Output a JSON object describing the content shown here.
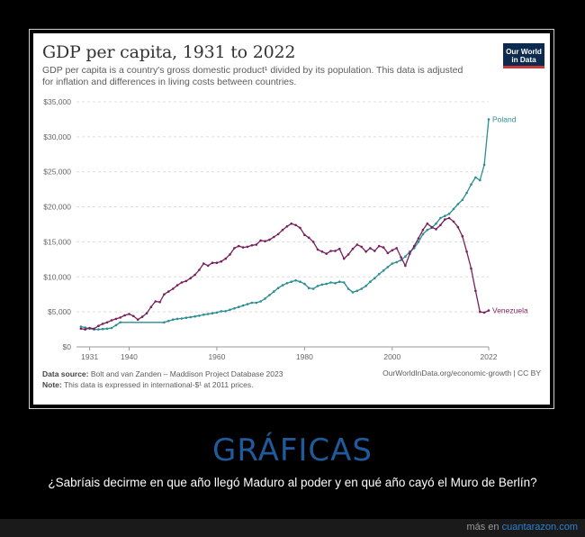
{
  "card": {
    "title": "GDP per capita, 1931 to 2022",
    "subtitle": "GDP per capita is a country's gross domestic product¹ divided by its population. This data is adjusted for inflation and differences in living costs between countries.",
    "logo_line1": "Our World",
    "logo_line2": "in Data",
    "source_label": "Data source:",
    "source_text": "Bolt and van Zanden – Maddison Project Database 2023",
    "note_label": "Note:",
    "note_text": "This data is expressed in international-$¹ at 2011 prices.",
    "url_text": "OurWorldInData.org/economic-growth | CC BY"
  },
  "post": {
    "headline": "GRÁFICAS",
    "caption": "¿Sabríais decirme en que año llegó Maduro al poder y en qué año cayó el Muro de Berlín?",
    "credit_prefix": "más en",
    "credit_site": "cuantarazon.com"
  },
  "chart_data": {
    "type": "line",
    "title": "GDP per capita, 1931 to 2022",
    "xlabel": "",
    "ylabel": "",
    "xlim": [
      1928,
      2022
    ],
    "ylim": [
      0,
      35000
    ],
    "x_ticks": [
      1931,
      1940,
      1960,
      1980,
      2000,
      2022
    ],
    "y_ticks": [
      0,
      5000,
      10000,
      15000,
      20000,
      25000,
      30000,
      35000
    ],
    "y_tick_labels": [
      "$0",
      "$5,000",
      "$10,000",
      "$15,000",
      "$20,000",
      "$25,000",
      "$30,000",
      "$35,000"
    ],
    "grid": "horizontal-dashed",
    "colors": {
      "Poland": "#2a8e93",
      "Venezuela": "#7a1f5e"
    },
    "series": [
      {
        "name": "Poland",
        "label_position": "end",
        "points": [
          [
            1929,
            2900
          ],
          [
            1930,
            2750
          ],
          [
            1931,
            2600
          ],
          [
            1932,
            2500
          ],
          [
            1933,
            2500
          ],
          [
            1934,
            2550
          ],
          [
            1935,
            2600
          ],
          [
            1936,
            2700
          ],
          [
            1937,
            3100
          ],
          [
            1938,
            3500
          ],
          [
            1948,
            3500
          ],
          [
            1949,
            3700
          ],
          [
            1950,
            3900
          ],
          [
            1951,
            4000
          ],
          [
            1952,
            4050
          ],
          [
            1953,
            4150
          ],
          [
            1954,
            4250
          ],
          [
            1955,
            4350
          ],
          [
            1956,
            4450
          ],
          [
            1957,
            4600
          ],
          [
            1958,
            4700
          ],
          [
            1959,
            4800
          ],
          [
            1960,
            4900
          ],
          [
            1961,
            5100
          ],
          [
            1962,
            5100
          ],
          [
            1963,
            5300
          ],
          [
            1964,
            5500
          ],
          [
            1965,
            5700
          ],
          [
            1966,
            5900
          ],
          [
            1967,
            6100
          ],
          [
            1968,
            6300
          ],
          [
            1969,
            6300
          ],
          [
            1970,
            6500
          ],
          [
            1971,
            6900
          ],
          [
            1972,
            7400
          ],
          [
            1973,
            7900
          ],
          [
            1974,
            8400
          ],
          [
            1975,
            8800
          ],
          [
            1976,
            9100
          ],
          [
            1977,
            9300
          ],
          [
            1978,
            9500
          ],
          [
            1979,
            9300
          ],
          [
            1980,
            9000
          ],
          [
            1981,
            8400
          ],
          [
            1982,
            8300
          ],
          [
            1983,
            8700
          ],
          [
            1984,
            8900
          ],
          [
            1985,
            9000
          ],
          [
            1986,
            9200
          ],
          [
            1987,
            9100
          ],
          [
            1988,
            9300
          ],
          [
            1989,
            9200
          ],
          [
            1990,
            8300
          ],
          [
            1991,
            7800
          ],
          [
            1992,
            8000
          ],
          [
            1993,
            8300
          ],
          [
            1994,
            8700
          ],
          [
            1995,
            9300
          ],
          [
            1996,
            9800
          ],
          [
            1997,
            10400
          ],
          [
            1998,
            10900
          ],
          [
            1999,
            11400
          ],
          [
            2000,
            11900
          ],
          [
            2001,
            12100
          ],
          [
            2002,
            12400
          ],
          [
            2003,
            12900
          ],
          [
            2004,
            13600
          ],
          [
            2005,
            14100
          ],
          [
            2006,
            15000
          ],
          [
            2007,
            16100
          ],
          [
            2008,
            16700
          ],
          [
            2009,
            17000
          ],
          [
            2010,
            17600
          ],
          [
            2011,
            18400
          ],
          [
            2012,
            18700
          ],
          [
            2013,
            19000
          ],
          [
            2014,
            19700
          ],
          [
            2015,
            20400
          ],
          [
            2016,
            21000
          ],
          [
            2017,
            22000
          ],
          [
            2018,
            23200
          ],
          [
            2019,
            24200
          ],
          [
            2020,
            23800
          ],
          [
            2021,
            26000
          ],
          [
            2022,
            32500
          ]
        ]
      },
      {
        "name": "Venezuela",
        "label_position": "end",
        "points": [
          [
            1929,
            2600
          ],
          [
            1930,
            2500
          ],
          [
            1931,
            2700
          ],
          [
            1932,
            2600
          ],
          [
            1933,
            3000
          ],
          [
            1934,
            3300
          ],
          [
            1935,
            3500
          ],
          [
            1936,
            3800
          ],
          [
            1937,
            4000
          ],
          [
            1938,
            4200
          ],
          [
            1939,
            4500
          ],
          [
            1940,
            4700
          ],
          [
            1941,
            4400
          ],
          [
            1942,
            3900
          ],
          [
            1943,
            4300
          ],
          [
            1944,
            4800
          ],
          [
            1945,
            5700
          ],
          [
            1946,
            6500
          ],
          [
            1947,
            6400
          ],
          [
            1948,
            7500
          ],
          [
            1949,
            7900
          ],
          [
            1950,
            8300
          ],
          [
            1951,
            8800
          ],
          [
            1952,
            9200
          ],
          [
            1953,
            9400
          ],
          [
            1954,
            9800
          ],
          [
            1955,
            10300
          ],
          [
            1956,
            11000
          ],
          [
            1957,
            11900
          ],
          [
            1958,
            11600
          ],
          [
            1959,
            12000
          ],
          [
            1960,
            12000
          ],
          [
            1961,
            12200
          ],
          [
            1962,
            12600
          ],
          [
            1963,
            13200
          ],
          [
            1964,
            14100
          ],
          [
            1965,
            14400
          ],
          [
            1966,
            14200
          ],
          [
            1967,
            14300
          ],
          [
            1968,
            14500
          ],
          [
            1969,
            14600
          ],
          [
            1970,
            15200
          ],
          [
            1971,
            15100
          ],
          [
            1972,
            15300
          ],
          [
            1973,
            15700
          ],
          [
            1974,
            16100
          ],
          [
            1975,
            16700
          ],
          [
            1976,
            17200
          ],
          [
            1977,
            17600
          ],
          [
            1978,
            17400
          ],
          [
            1979,
            17000
          ],
          [
            1980,
            16000
          ],
          [
            1981,
            15600
          ],
          [
            1982,
            15000
          ],
          [
            1983,
            13900
          ],
          [
            1984,
            13600
          ],
          [
            1985,
            13300
          ],
          [
            1986,
            13700
          ],
          [
            1987,
            13700
          ],
          [
            1988,
            14000
          ],
          [
            1989,
            12600
          ],
          [
            1990,
            13200
          ],
          [
            1991,
            14000
          ],
          [
            1992,
            14600
          ],
          [
            1993,
            14300
          ],
          [
            1994,
            13600
          ],
          [
            1995,
            14100
          ],
          [
            1996,
            13700
          ],
          [
            1997,
            14400
          ],
          [
            1998,
            14200
          ],
          [
            1999,
            13400
          ],
          [
            2000,
            13800
          ],
          [
            2001,
            14100
          ],
          [
            2002,
            12800
          ],
          [
            2003,
            11600
          ],
          [
            2004,
            13300
          ],
          [
            2005,
            14400
          ],
          [
            2006,
            15500
          ],
          [
            2007,
            16700
          ],
          [
            2008,
            17600
          ],
          [
            2009,
            17100
          ],
          [
            2010,
            16800
          ],
          [
            2011,
            17400
          ],
          [
            2012,
            18200
          ],
          [
            2013,
            18400
          ],
          [
            2014,
            17900
          ],
          [
            2015,
            17100
          ],
          [
            2016,
            15800
          ],
          [
            2017,
            13600
          ],
          [
            2018,
            11200
          ],
          [
            2019,
            8000
          ],
          [
            2020,
            5000
          ],
          [
            2021,
            4900
          ],
          [
            2022,
            5200
          ]
        ]
      }
    ]
  }
}
